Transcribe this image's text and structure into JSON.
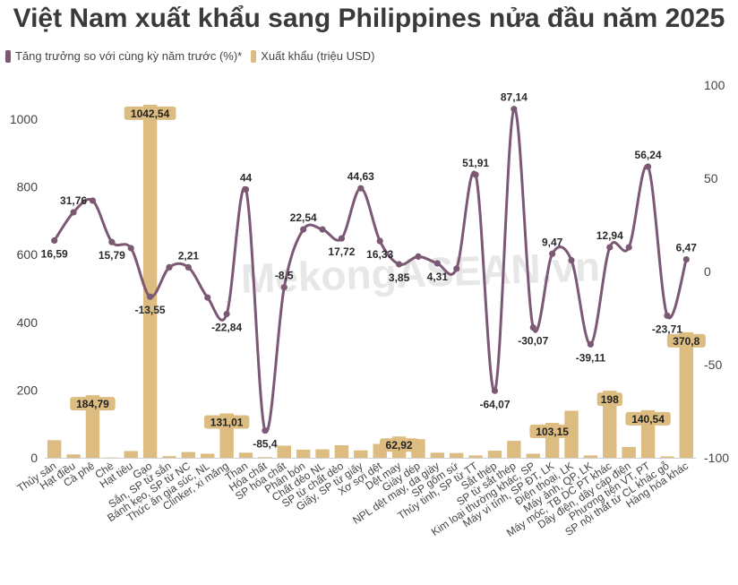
{
  "chart_data": {
    "type": "bar",
    "title": "Việt Nam xuất khẩu sang Philippines nửa đầu năm 2025",
    "watermark": "MekongASEAN.vn",
    "legend_placement": "top-left",
    "grid": false,
    "colors": {
      "line": "#7b5873",
      "bar": "#dcbc80",
      "bar_label_bg": "#dcbc80"
    },
    "y_left": {
      "ticks": [
        "0",
        "200",
        "400",
        "600",
        "800",
        "1000"
      ],
      "ylim": [
        0,
        1100
      ]
    },
    "y_right": {
      "ticks": [
        "-100",
        "-50",
        "0",
        "50",
        "100"
      ],
      "ylim": [
        -100,
        100
      ]
    },
    "categories": [
      "Thủy sản",
      "Hạt điều",
      "Cà phê",
      "Chè",
      "Hạt tiêu",
      "Gạo",
      "Sắn, SP từ sắn",
      "Bánh kẹo, SP từ NC",
      "Thức ăn gia súc, NL",
      "Clinker, xi măng",
      "Than",
      "Hóa chất",
      "SP hóa chất",
      "Phân bón",
      "Chất dẻo NL",
      "SP từ chất dẻo",
      "Giấy, SP từ giấy",
      "Xơ sợi dệt",
      "Dệt may",
      "Giày dép",
      "NPL dệt may, da giày",
      "SP gốm sứ",
      "Thủy tinh, SP từ TT",
      "Sắt thép",
      "SP từ sắt thép",
      "Kim loại thường khác, SP",
      "Máy vi tính, SP ĐT, LK",
      "Điện thoại, LK",
      "Máy ảnh, QP, LK",
      "Máy móc, TB DC PT khác",
      "Dây điện, dây cáp điện",
      "Phương tiện VT, PT",
      "SP nội thất từ CL khác gỗ",
      "Hàng hóa khác"
    ],
    "series": [
      {
        "name": "Xuất khẩu (triệu USD)",
        "axis": "left",
        "kind": "bar",
        "values": [
          52,
          10,
          184.79,
          1,
          20,
          1042.54,
          5,
          17,
          12,
          131.01,
          15,
          2,
          36,
          24,
          25,
          37,
          22,
          41,
          62.92,
          55,
          15,
          14,
          7,
          21,
          50,
          12,
          103.15,
          139,
          7,
          198,
          32,
          140.54,
          4,
          370.8
        ]
      },
      {
        "name": "Tăng trưởng so với cùng kỳ năm trước (%)*",
        "axis": "right",
        "kind": "line",
        "values": [
          16.59,
          31.76,
          38,
          15.79,
          12.5,
          -13.55,
          2.21,
          2.21,
          -14,
          -22.84,
          44,
          -85.4,
          -8.5,
          22.54,
          22.54,
          17.72,
          44.63,
          16.33,
          3.85,
          8,
          4.31,
          1.5,
          51.91,
          -64.07,
          87.14,
          -30.07,
          9.47,
          6,
          -39.11,
          12.94,
          12.94,
          56.24,
          -23.71,
          6.47
        ]
      }
    ],
    "bar_labels": [
      {
        "index": 2,
        "text": "184,79"
      },
      {
        "index": 5,
        "text": "1042,54"
      },
      {
        "index": 9,
        "text": "131,01"
      },
      {
        "index": 18,
        "text": "62,92"
      },
      {
        "index": 26,
        "text": "103,15"
      },
      {
        "index": 29,
        "text": "198"
      },
      {
        "index": 31,
        "text": "140,54"
      },
      {
        "index": 33,
        "text": "370,8"
      }
    ],
    "line_labels": [
      {
        "index": 0,
        "text": "16,59"
      },
      {
        "index": 1,
        "text": "31,76"
      },
      {
        "index": 3,
        "text": "15,79"
      },
      {
        "index": 5,
        "text": "-13,55"
      },
      {
        "index": 7,
        "text": "2,21"
      },
      {
        "index": 9,
        "text": "-22,84"
      },
      {
        "index": 10,
        "text": "44"
      },
      {
        "index": 11,
        "text": "-85,4"
      },
      {
        "index": 12,
        "text": "-8,5"
      },
      {
        "index": 13,
        "text": "22,54"
      },
      {
        "index": 15,
        "text": "17,72"
      },
      {
        "index": 16,
        "text": "44,63"
      },
      {
        "index": 17,
        "text": "16,33"
      },
      {
        "index": 18,
        "text": "3,85"
      },
      {
        "index": 20,
        "text": "4,31"
      },
      {
        "index": 22,
        "text": "51,91"
      },
      {
        "index": 23,
        "text": "-64,07"
      },
      {
        "index": 24,
        "text": "87,14"
      },
      {
        "index": 25,
        "text": "-30,07"
      },
      {
        "index": 26,
        "text": "9,47"
      },
      {
        "index": 28,
        "text": "-39,11"
      },
      {
        "index": 29,
        "text": "12,94"
      },
      {
        "index": 31,
        "text": "56,24"
      },
      {
        "index": 32,
        "text": "-23,71"
      },
      {
        "index": 33,
        "text": "6,47"
      }
    ]
  }
}
